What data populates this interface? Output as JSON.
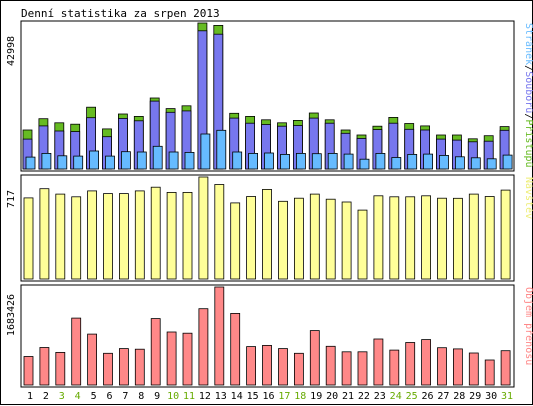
{
  "chart_data": {
    "type": "bar",
    "title": "Denní statistika za srpen 2013",
    "days": [
      1,
      2,
      3,
      4,
      5,
      6,
      7,
      8,
      9,
      10,
      11,
      12,
      13,
      14,
      15,
      16,
      17,
      18,
      19,
      20,
      21,
      22,
      23,
      24,
      25,
      26,
      27,
      28,
      29,
      30,
      31
    ],
    "weekend_days": [
      3,
      4,
      10,
      11,
      17,
      18,
      24,
      25,
      31
    ],
    "colors": {
      "pristupu": "#66bb22",
      "souboru": "#7777ee",
      "stranek": "#66bbff",
      "navstev": "#ffff99",
      "prenosu": "#ff8888",
      "weekend_label": "#66aa00",
      "weekday_label": "#000000"
    },
    "panels": [
      {
        "id": "hits",
        "max_label": "42998",
        "ylim": [
          0,
          42998
        ],
        "legend": [
          {
            "text": "Stránek",
            "color": "#66bbff"
          },
          {
            "text": "/",
            "color": "#000000"
          },
          {
            "text": "Souborů",
            "color": "#7777ee"
          },
          {
            "text": "/",
            "color": "#000000"
          },
          {
            "text": "Přístupů",
            "color": "#66bb22"
          }
        ],
        "series": [
          {
            "name": "Přístupů",
            "values": [
              11500,
              14800,
              13600,
              13200,
              18200,
              11800,
              16200,
              15500,
              20900,
              17800,
              18600,
              42998,
              42300,
              16400,
              15500,
              14500,
              13600,
              14300,
              16500,
              14500,
              11500,
              10000,
              12600,
              15200,
              13400,
              12700,
              10000,
              10000,
              8900,
              9800,
              12500
            ]
          },
          {
            "name": "Souborů",
            "values": [
              8800,
              12700,
              11200,
              11000,
              15100,
              9500,
              14900,
              14200,
              20000,
              16700,
              17100,
              40700,
              39700,
              15000,
              13500,
              13100,
              12600,
              12800,
              15000,
              13500,
              10500,
              9000,
              11600,
              13500,
              11700,
              11500,
              8800,
              8500,
              8000,
              8200,
              11400
            ]
          },
          {
            "name": "Stránek",
            "values": [
              3500,
              4600,
              3900,
              3800,
              5300,
              3800,
              5100,
              5000,
              6700,
              5000,
              4900,
              10300,
              11400,
              5000,
              4600,
              4700,
              4300,
              4600,
              4500,
              4600,
              4400,
              2900,
              4600,
              3400,
              4300,
              4400,
              4000,
              3600,
              3300,
              3000,
              4100
            ]
          }
        ]
      },
      {
        "id": "visits",
        "max_label": "717",
        "ylim": [
          0,
          717
        ],
        "legend": [
          {
            "text": "Návštěv",
            "color": "#eeee77"
          }
        ],
        "series": [
          {
            "name": "Návštěv",
            "values": [
              570,
              635,
              597,
              578,
              619,
              600,
              600,
              619,
              645,
              609,
              609,
              717,
              664,
              535,
              580,
              630,
              546,
              568,
              597,
              561,
              541,
              484,
              585,
              578,
              578,
              585,
              568,
              567,
              597,
              580,
              625
            ]
          }
        ]
      },
      {
        "id": "transfer",
        "max_label": "1683426",
        "ylim": [
          0,
          1683426
        ],
        "legend": [
          {
            "text": "Objem přenosu",
            "color": "#ff8888"
          }
        ],
        "series": [
          {
            "name": "Objem přenosu",
            "values": [
              490000,
              645000,
              560000,
              1150000,
              875000,
              545000,
              625000,
              615000,
              1140000,
              910000,
              890000,
              1310000,
              1683426,
              1230000,
              660000,
              680000,
              625000,
              545000,
              935000,
              665000,
              570000,
              570000,
              790000,
              600000,
              730000,
              780000,
              640000,
              620000,
              550000,
              430000,
              590000
            ]
          }
        ]
      }
    ]
  }
}
